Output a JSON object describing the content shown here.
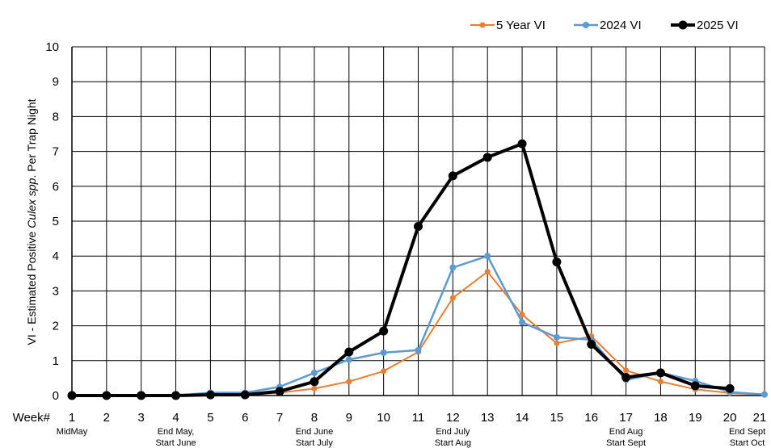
{
  "chart_data": {
    "type": "line",
    "x": [
      1,
      2,
      3,
      4,
      5,
      6,
      7,
      8,
      9,
      10,
      11,
      12,
      13,
      14,
      15,
      16,
      17,
      18,
      19,
      20,
      21
    ],
    "xlim": [
      1,
      21
    ],
    "ylim": [
      0,
      10
    ],
    "yticks": [
      "0",
      "1",
      "2",
      "3",
      "4",
      "5",
      "6",
      "7",
      "8",
      "9",
      "10"
    ],
    "xticks": [
      "1",
      "2",
      "3",
      "4",
      "5",
      "6",
      "7",
      "8",
      "9",
      "10",
      "11",
      "12",
      "13",
      "14",
      "15",
      "16",
      "17",
      "18",
      "19",
      "20",
      "21"
    ],
    "x_axis_prefix": "Week#",
    "grid": true,
    "legend_position": "top-right",
    "ylabel_parts": [
      "VI - Estimated Positive ",
      "Culex spp",
      ". Per Trap Night"
    ],
    "period_labels": [
      {
        "week": 1,
        "lines": [
          "MidMay"
        ]
      },
      {
        "week": 4,
        "lines": [
          "End May,",
          "Start June"
        ]
      },
      {
        "week": 8,
        "lines": [
          "End June",
          "Start July"
        ]
      },
      {
        "week": 12,
        "lines": [
          "End July",
          "Start Aug"
        ]
      },
      {
        "week": 17,
        "lines": [
          "End Aug",
          "Start Sept"
        ]
      },
      {
        "week": 20.5,
        "lines": [
          "End Sept",
          "Start Oct"
        ]
      }
    ],
    "series": [
      {
        "name": "5 Year VI",
        "color": "#ED7D31",
        "width": 2,
        "marker": 3.5,
        "values": [
          0,
          0,
          0,
          0,
          0.03,
          0.03,
          0.08,
          0.2,
          0.4,
          0.7,
          1.25,
          2.8,
          3.55,
          2.32,
          1.5,
          1.7,
          0.72,
          0.4,
          0.18,
          0.07,
          0.03
        ]
      },
      {
        "name": "2024 VI",
        "color": "#5B9BD5",
        "width": 2.5,
        "marker": 4,
        "values": [
          0,
          0,
          0,
          0,
          0.08,
          0.08,
          0.25,
          0.65,
          1.03,
          1.23,
          1.3,
          3.67,
          4.0,
          2.1,
          1.67,
          1.6,
          0.45,
          0.65,
          0.42,
          0.1,
          0.03
        ]
      },
      {
        "name": "2025 VI",
        "color": "#000000",
        "width": 4,
        "marker": 5.5,
        "values": [
          0,
          0,
          0,
          0,
          0.02,
          0.02,
          0.12,
          0.4,
          1.25,
          1.85,
          4.85,
          6.3,
          6.83,
          7.22,
          3.83,
          1.47,
          0.52,
          0.65,
          0.28,
          0.2,
          null
        ]
      }
    ]
  }
}
